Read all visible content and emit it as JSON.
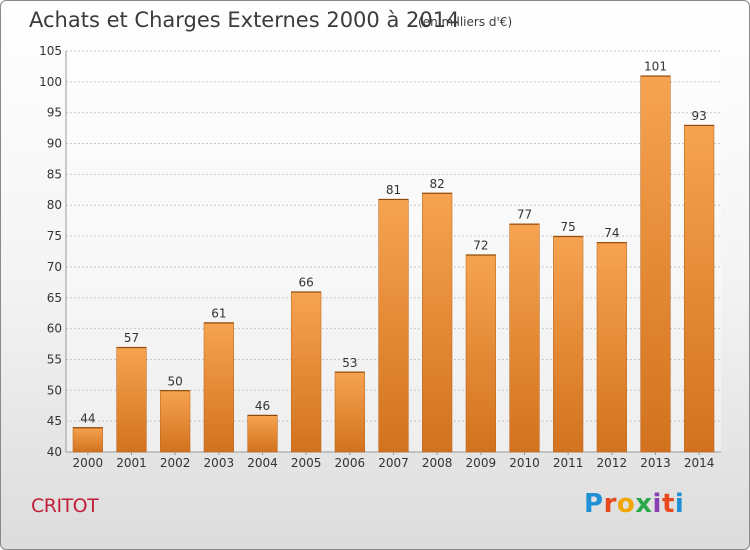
{
  "header": {
    "title": "Achats et Charges Externes 2000 à 2014",
    "subtitle": "(en milliers d'€)"
  },
  "footer": {
    "commune": "CRITOT",
    "logo_text": "Proxiti",
    "logo_colors": [
      "#1f8fd6",
      "#e8491d",
      "#f0a500",
      "#2aa84a",
      "#8b3fb4",
      "#e8491d",
      "#1f8fd6"
    ]
  },
  "colors": {
    "bar_top": "#f6a350",
    "bar_bottom": "#d2721e",
    "bar_border": "#b85f14",
    "grid": "#c8c8c8",
    "axis_text": "#333333"
  },
  "chart_data": {
    "type": "bar",
    "title": "Achats et Charges Externes 2000 à 2014",
    "subtitle": "(en milliers d'€)",
    "categories": [
      "2000",
      "2001",
      "2002",
      "2003",
      "2004",
      "2005",
      "2006",
      "2007",
      "2008",
      "2009",
      "2010",
      "2011",
      "2012",
      "2013",
      "2014"
    ],
    "values": [
      44,
      57,
      50,
      61,
      46,
      66,
      53,
      81,
      82,
      72,
      77,
      75,
      74,
      101,
      93
    ],
    "ylim": [
      40,
      105
    ],
    "yticks": [
      40,
      45,
      50,
      55,
      60,
      65,
      70,
      75,
      80,
      85,
      90,
      95,
      100,
      105
    ],
    "grid": true,
    "data_labels": true
  }
}
